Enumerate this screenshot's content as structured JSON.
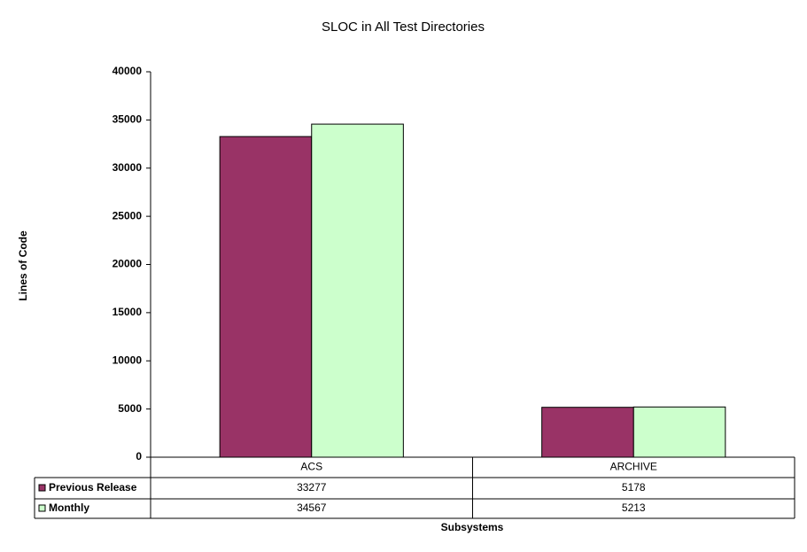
{
  "chart_data": {
    "type": "bar",
    "title": "SLOC in All Test Directories",
    "y_label": "Lines of Code",
    "x_label": "Subsystems",
    "categories": [
      "ACS",
      "ARCHIVE"
    ],
    "series": [
      {
        "name": "Previous Release",
        "color": "#993366",
        "values": [
          33277,
          5178
        ]
      },
      {
        "name": "Monthly",
        "color": "#ccffcc",
        "values": [
          34567,
          5213
        ]
      }
    ],
    "ylim": [
      0,
      40000
    ],
    "yticks": [
      0,
      5000,
      10000,
      15000,
      20000,
      25000,
      30000,
      35000,
      40000
    ],
    "grid": false,
    "legend": "data-table"
  }
}
